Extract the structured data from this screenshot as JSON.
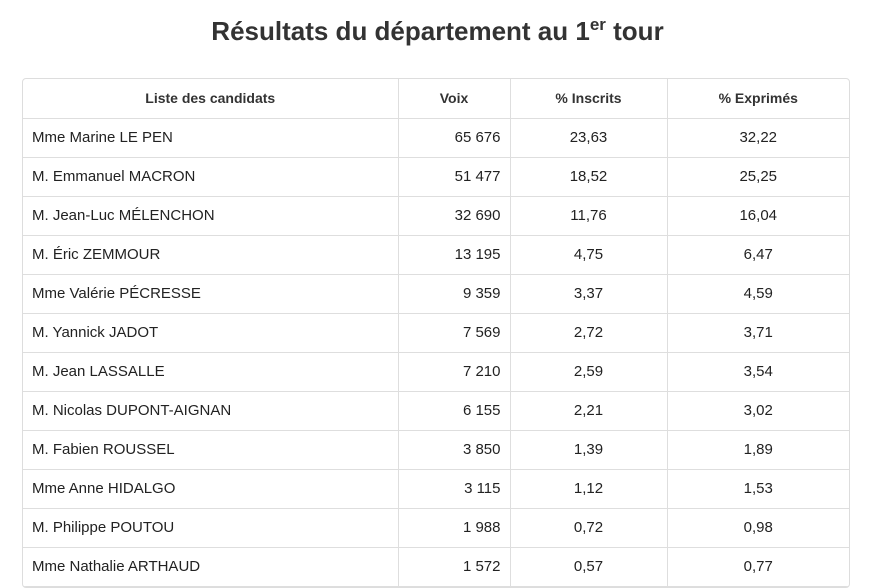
{
  "header": {
    "title": "Résultats du département au 1",
    "title_sup": "er",
    "title_end": " tour"
  },
  "table": {
    "columns": [
      "Liste des candidats",
      "Voix",
      "% Inscrits",
      "% Exprimés"
    ],
    "rows": [
      [
        "Mme Marine LE PEN",
        "65 676",
        "23,63",
        "32,22"
      ],
      [
        "M. Emmanuel MACRON",
        "51 477",
        "18,52",
        "25,25"
      ],
      [
        "M. Jean-Luc MÉLENCHON",
        "32 690",
        "11,76",
        "16,04"
      ],
      [
        "M. Éric ZEMMOUR",
        "13 195",
        "4,75",
        "6,47"
      ],
      [
        "Mme Valérie PÉCRESSE",
        "9 359",
        "3,37",
        "4,59"
      ],
      [
        "M. Yannick JADOT",
        "7 569",
        "2,72",
        "3,71"
      ],
      [
        "M. Jean LASSALLE",
        "7 210",
        "2,59",
        "3,54"
      ],
      [
        "M. Nicolas DUPONT-AIGNAN",
        "6 155",
        "2,21",
        "3,02"
      ],
      [
        "M. Fabien ROUSSEL",
        "3 850",
        "1,39",
        "1,89"
      ],
      [
        "Mme Anne HIDALGO",
        "3 115",
        "1,12",
        "1,53"
      ],
      [
        "M. Philippe POUTOU",
        "1 988",
        "0,72",
        "0,98"
      ],
      [
        "Mme Nathalie ARTHAUD",
        "1 572",
        "0,57",
        "0,77"
      ]
    ]
  }
}
